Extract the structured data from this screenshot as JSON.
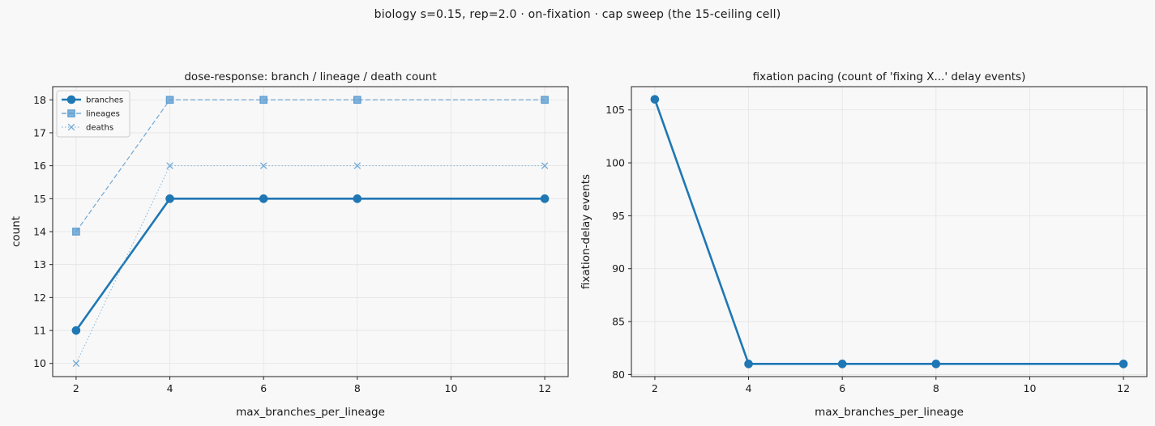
{
  "suptitle": "biology s=0.15, rep=2.0 · on-fixation · cap sweep (the 15-ceiling cell)",
  "colors": {
    "background": "#f8f8f8",
    "axes_bg": "#f8f8f8",
    "grid": "#e3e3e3",
    "primary": "#1f77b4",
    "secondary": "#7fb3d9"
  },
  "chart_data": [
    {
      "type": "line",
      "title": "dose-response: branch / lineage / death count",
      "xlabel": "max_branches_per_lineage",
      "ylabel": "count",
      "x": [
        2,
        4,
        6,
        8,
        12
      ],
      "xlim": [
        1.5,
        12.5
      ],
      "ylim": [
        9.6,
        18.4
      ],
      "xticks": [
        2,
        4,
        6,
        8,
        10,
        12
      ],
      "yticks": [
        10,
        11,
        12,
        13,
        14,
        15,
        16,
        17,
        18
      ],
      "grid": true,
      "legend": "upper-left",
      "series": [
        {
          "name": "branches",
          "values": [
            11,
            15,
            15,
            15,
            15
          ],
          "marker": "circle",
          "style": "solid",
          "color": "#1f77b4"
        },
        {
          "name": "lineages",
          "values": [
            14,
            18,
            18,
            18,
            18
          ],
          "marker": "square",
          "style": "dashed",
          "color": "#5a9bd0"
        },
        {
          "name": "deaths",
          "values": [
            10,
            16,
            16,
            16,
            16
          ],
          "marker": "x",
          "style": "dotted",
          "color": "#6fa8d6"
        }
      ]
    },
    {
      "type": "line",
      "title": "fixation pacing (count of 'fixing X...' delay events)",
      "xlabel": "max_branches_per_lineage",
      "ylabel": "fixation-delay events",
      "x": [
        2,
        4,
        6,
        8,
        12
      ],
      "xlim": [
        1.5,
        12.5
      ],
      "ylim": [
        79.8,
        107.2
      ],
      "xticks": [
        2,
        4,
        6,
        8,
        10,
        12
      ],
      "yticks": [
        80,
        85,
        90,
        95,
        100,
        105
      ],
      "grid": true,
      "series": [
        {
          "values": [
            106,
            81,
            81,
            81,
            81
          ],
          "marker": "circle",
          "style": "solid",
          "color": "#1f77b4"
        }
      ]
    }
  ]
}
